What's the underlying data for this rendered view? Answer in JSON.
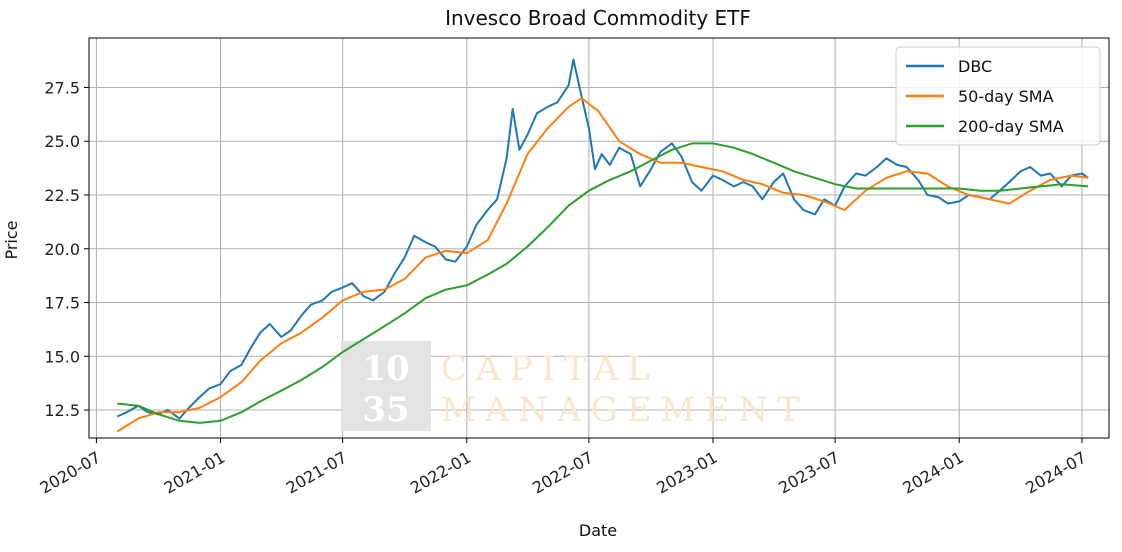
{
  "chart_data": {
    "type": "line",
    "title": "Invesco Broad Commodity ETF",
    "xlabel": "Date",
    "ylabel": "Price",
    "x_range": [
      "2020-06-20",
      "2024-08-10"
    ],
    "ylim": [
      11.2,
      29.8
    ],
    "grid": true,
    "legend_position": "top-right",
    "x_ticks": [
      "2020-07",
      "2021-01",
      "2021-07",
      "2022-01",
      "2022-07",
      "2023-01",
      "2023-07",
      "2024-01",
      "2024-07"
    ],
    "x_tick_dates": [
      "2020-07-01",
      "2021-01-01",
      "2021-07-01",
      "2022-01-01",
      "2022-07-01",
      "2023-01-01",
      "2023-07-01",
      "2024-01-01",
      "2024-07-01"
    ],
    "y_ticks": [
      12.5,
      15.0,
      17.5,
      20.0,
      22.5,
      25.0,
      27.5
    ],
    "y_tick_labels": [
      "12.5",
      "15.0",
      "17.5",
      "20.0",
      "22.5",
      "25.0",
      "27.5"
    ],
    "series": [
      {
        "name": "DBC",
        "color": "#1f77b4",
        "points": [
          [
            "2020-08-01",
            12.2
          ],
          [
            "2020-08-15",
            12.4
          ],
          [
            "2020-09-01",
            12.7
          ],
          [
            "2020-09-15",
            12.4
          ],
          [
            "2020-10-01",
            12.3
          ],
          [
            "2020-10-15",
            12.5
          ],
          [
            "2020-11-01",
            12.1
          ],
          [
            "2020-11-15",
            12.6
          ],
          [
            "2020-12-01",
            13.1
          ],
          [
            "2020-12-15",
            13.5
          ],
          [
            "2021-01-01",
            13.7
          ],
          [
            "2021-01-15",
            14.3
          ],
          [
            "2021-02-01",
            14.6
          ],
          [
            "2021-02-15",
            15.4
          ],
          [
            "2021-03-01",
            16.1
          ],
          [
            "2021-03-15",
            16.5
          ],
          [
            "2021-04-01",
            15.9
          ],
          [
            "2021-04-15",
            16.2
          ],
          [
            "2021-05-01",
            16.9
          ],
          [
            "2021-05-15",
            17.4
          ],
          [
            "2021-06-01",
            17.6
          ],
          [
            "2021-06-15",
            18.0
          ],
          [
            "2021-07-01",
            18.2
          ],
          [
            "2021-07-15",
            18.4
          ],
          [
            "2021-08-01",
            17.8
          ],
          [
            "2021-08-15",
            17.6
          ],
          [
            "2021-09-01",
            18.0
          ],
          [
            "2021-09-15",
            18.8
          ],
          [
            "2021-10-01",
            19.6
          ],
          [
            "2021-10-15",
            20.6
          ],
          [
            "2021-11-01",
            20.3
          ],
          [
            "2021-11-15",
            20.1
          ],
          [
            "2021-12-01",
            19.5
          ],
          [
            "2021-12-15",
            19.4
          ],
          [
            "2022-01-01",
            20.1
          ],
          [
            "2022-01-15",
            21.1
          ],
          [
            "2022-02-01",
            21.8
          ],
          [
            "2022-02-15",
            22.3
          ],
          [
            "2022-03-01",
            24.2
          ],
          [
            "2022-03-10",
            26.5
          ],
          [
            "2022-03-20",
            24.6
          ],
          [
            "2022-04-01",
            25.3
          ],
          [
            "2022-04-15",
            26.3
          ],
          [
            "2022-05-01",
            26.6
          ],
          [
            "2022-05-15",
            26.8
          ],
          [
            "2022-06-01",
            27.6
          ],
          [
            "2022-06-08",
            28.8
          ],
          [
            "2022-06-20",
            27.1
          ],
          [
            "2022-07-01",
            25.6
          ],
          [
            "2022-07-10",
            23.7
          ],
          [
            "2022-07-20",
            24.4
          ],
          [
            "2022-08-01",
            23.9
          ],
          [
            "2022-08-15",
            24.7
          ],
          [
            "2022-09-01",
            24.4
          ],
          [
            "2022-09-15",
            22.9
          ],
          [
            "2022-10-01",
            23.7
          ],
          [
            "2022-10-15",
            24.5
          ],
          [
            "2022-11-01",
            24.9
          ],
          [
            "2022-11-15",
            24.3
          ],
          [
            "2022-12-01",
            23.1
          ],
          [
            "2022-12-15",
            22.7
          ],
          [
            "2023-01-01",
            23.4
          ],
          [
            "2023-01-15",
            23.2
          ],
          [
            "2023-02-01",
            22.9
          ],
          [
            "2023-02-15",
            23.1
          ],
          [
            "2023-03-01",
            22.9
          ],
          [
            "2023-03-15",
            22.3
          ],
          [
            "2023-04-01",
            23.1
          ],
          [
            "2023-04-15",
            23.5
          ],
          [
            "2023-05-01",
            22.3
          ],
          [
            "2023-05-15",
            21.8
          ],
          [
            "2023-06-01",
            21.6
          ],
          [
            "2023-06-15",
            22.3
          ],
          [
            "2023-07-01",
            22.0
          ],
          [
            "2023-07-15",
            22.9
          ],
          [
            "2023-08-01",
            23.5
          ],
          [
            "2023-08-15",
            23.4
          ],
          [
            "2023-09-01",
            23.8
          ],
          [
            "2023-09-15",
            24.2
          ],
          [
            "2023-10-01",
            23.9
          ],
          [
            "2023-10-15",
            23.8
          ],
          [
            "2023-11-01",
            23.2
          ],
          [
            "2023-11-15",
            22.5
          ],
          [
            "2023-12-01",
            22.4
          ],
          [
            "2023-12-15",
            22.1
          ],
          [
            "2024-01-01",
            22.2
          ],
          [
            "2024-01-15",
            22.5
          ],
          [
            "2024-02-01",
            22.4
          ],
          [
            "2024-02-15",
            22.3
          ],
          [
            "2024-03-01",
            22.7
          ],
          [
            "2024-03-15",
            23.1
          ],
          [
            "2024-04-01",
            23.6
          ],
          [
            "2024-04-15",
            23.8
          ],
          [
            "2024-05-01",
            23.4
          ],
          [
            "2024-05-15",
            23.5
          ],
          [
            "2024-06-01",
            22.9
          ],
          [
            "2024-06-15",
            23.4
          ],
          [
            "2024-07-01",
            23.5
          ],
          [
            "2024-07-10",
            23.3
          ]
        ]
      },
      {
        "name": "50-day SMA",
        "color": "#ff7f0e",
        "points": [
          [
            "2020-08-01",
            11.5
          ],
          [
            "2020-09-01",
            12.1
          ],
          [
            "2020-10-01",
            12.4
          ],
          [
            "2020-11-01",
            12.4
          ],
          [
            "2020-12-01",
            12.6
          ],
          [
            "2021-01-01",
            13.1
          ],
          [
            "2021-02-01",
            13.8
          ],
          [
            "2021-03-01",
            14.8
          ],
          [
            "2021-04-01",
            15.6
          ],
          [
            "2021-05-01",
            16.1
          ],
          [
            "2021-06-01",
            16.8
          ],
          [
            "2021-07-01",
            17.6
          ],
          [
            "2021-08-01",
            18.0
          ],
          [
            "2021-09-01",
            18.1
          ],
          [
            "2021-10-01",
            18.6
          ],
          [
            "2021-11-01",
            19.6
          ],
          [
            "2021-12-01",
            19.9
          ],
          [
            "2022-01-01",
            19.8
          ],
          [
            "2022-02-01",
            20.4
          ],
          [
            "2022-03-01",
            22.1
          ],
          [
            "2022-04-01",
            24.4
          ],
          [
            "2022-05-01",
            25.6
          ],
          [
            "2022-06-01",
            26.6
          ],
          [
            "2022-06-20",
            27.0
          ],
          [
            "2022-07-15",
            26.4
          ],
          [
            "2022-08-15",
            25.0
          ],
          [
            "2022-09-15",
            24.4
          ],
          [
            "2022-10-15",
            24.0
          ],
          [
            "2022-11-15",
            24.0
          ],
          [
            "2022-12-15",
            23.8
          ],
          [
            "2023-01-15",
            23.6
          ],
          [
            "2023-02-15",
            23.2
          ],
          [
            "2023-03-15",
            23.0
          ],
          [
            "2023-04-15",
            22.6
          ],
          [
            "2023-05-15",
            22.5
          ],
          [
            "2023-06-15",
            22.2
          ],
          [
            "2023-07-15",
            21.8
          ],
          [
            "2023-08-15",
            22.7
          ],
          [
            "2023-09-15",
            23.3
          ],
          [
            "2023-10-15",
            23.6
          ],
          [
            "2023-11-15",
            23.5
          ],
          [
            "2023-12-15",
            22.9
          ],
          [
            "2024-01-15",
            22.5
          ],
          [
            "2024-02-15",
            22.3
          ],
          [
            "2024-03-15",
            22.1
          ],
          [
            "2024-04-15",
            22.7
          ],
          [
            "2024-05-15",
            23.2
          ],
          [
            "2024-06-15",
            23.4
          ],
          [
            "2024-07-10",
            23.3
          ]
        ]
      },
      {
        "name": "200-day SMA",
        "color": "#2ca02c",
        "points": [
          [
            "2020-08-01",
            12.8
          ],
          [
            "2020-09-01",
            12.7
          ],
          [
            "2020-10-01",
            12.3
          ],
          [
            "2020-11-01",
            12.0
          ],
          [
            "2020-12-01",
            11.9
          ],
          [
            "2021-01-01",
            12.0
          ],
          [
            "2021-02-01",
            12.4
          ],
          [
            "2021-03-01",
            12.9
          ],
          [
            "2021-04-01",
            13.4
          ],
          [
            "2021-05-01",
            13.9
          ],
          [
            "2021-06-01",
            14.5
          ],
          [
            "2021-07-01",
            15.2
          ],
          [
            "2021-08-01",
            15.8
          ],
          [
            "2021-09-01",
            16.4
          ],
          [
            "2021-10-01",
            17.0
          ],
          [
            "2021-11-01",
            17.7
          ],
          [
            "2021-12-01",
            18.1
          ],
          [
            "2022-01-01",
            18.3
          ],
          [
            "2022-02-01",
            18.8
          ],
          [
            "2022-03-01",
            19.3
          ],
          [
            "2022-04-01",
            20.1
          ],
          [
            "2022-05-01",
            21.0
          ],
          [
            "2022-06-01",
            22.0
          ],
          [
            "2022-07-01",
            22.7
          ],
          [
            "2022-08-01",
            23.2
          ],
          [
            "2022-09-01",
            23.6
          ],
          [
            "2022-10-01",
            24.1
          ],
          [
            "2022-11-01",
            24.6
          ],
          [
            "2022-12-01",
            24.9
          ],
          [
            "2023-01-01",
            24.9
          ],
          [
            "2023-02-01",
            24.7
          ],
          [
            "2023-03-01",
            24.4
          ],
          [
            "2023-04-01",
            24.0
          ],
          [
            "2023-05-01",
            23.6
          ],
          [
            "2023-06-01",
            23.3
          ],
          [
            "2023-07-01",
            23.0
          ],
          [
            "2023-08-01",
            22.8
          ],
          [
            "2023-09-01",
            22.8
          ],
          [
            "2023-10-01",
            22.8
          ],
          [
            "2023-11-01",
            22.8
          ],
          [
            "2023-12-01",
            22.8
          ],
          [
            "2024-01-01",
            22.8
          ],
          [
            "2024-02-01",
            22.7
          ],
          [
            "2024-03-01",
            22.7
          ],
          [
            "2024-04-01",
            22.8
          ],
          [
            "2024-05-01",
            22.9
          ],
          [
            "2024-06-01",
            23.0
          ],
          [
            "2024-07-10",
            22.9
          ]
        ]
      }
    ]
  },
  "watermark": {
    "number_top": "10",
    "number_bottom": "35",
    "line1": "CAPITAL",
    "line2": "MANAGEMENT"
  }
}
